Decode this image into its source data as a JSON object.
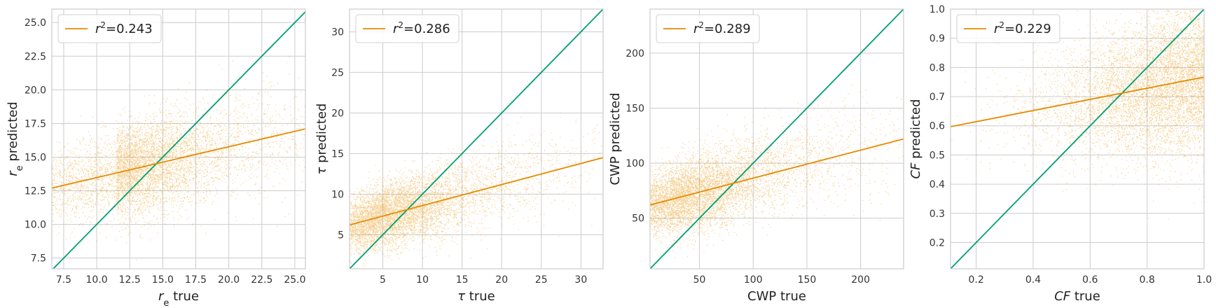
{
  "colors": {
    "scatter": "#e69914",
    "fit": "#e68a00",
    "identity": "#009e73",
    "grid": "#cccccc",
    "frame": "#cccccc"
  },
  "chart_data": [
    {
      "type": "scatter",
      "xlabel": "r_e true",
      "ylabel": "r_e predicted",
      "xlabel_parts": [
        {
          "t": "r",
          "s": "it"
        },
        {
          "t": "e",
          "s": "sub"
        },
        {
          "t": " true",
          "s": ""
        }
      ],
      "ylabel_parts": [
        {
          "t": "r",
          "s": "it"
        },
        {
          "t": "e",
          "s": "sub"
        },
        {
          "t": " predicted",
          "s": ""
        }
      ],
      "xlim": [
        6.6,
        25.8
      ],
      "ylim": [
        6.7,
        26.0
      ],
      "xticks": [
        7.5,
        10.0,
        12.5,
        15.0,
        17.5,
        20.0,
        22.5,
        25.0
      ],
      "xtick_labels": [
        "7.5",
        "10.0",
        "12.5",
        "15.0",
        "17.5",
        "20.0",
        "22.5",
        "25.0"
      ],
      "yticks": [
        7.5,
        10.0,
        12.5,
        15.0,
        17.5,
        20.0,
        22.5,
        25.0
      ],
      "ytick_labels": [
        "7.5",
        "10.0",
        "12.5",
        "15.0",
        "17.5",
        "20.0",
        "22.5",
        "25.0"
      ],
      "fit_line": [
        [
          6.6,
          12.7
        ],
        [
          25.8,
          17.1
        ]
      ],
      "identity_line": true,
      "legend": {
        "label": "r²=0.243",
        "placement": "upper left"
      },
      "r2": 0.243,
      "point_cloud": {
        "x_mode": 11.5,
        "y_at_mode": 13.0,
        "y_spread": 1.4
      }
    },
    {
      "type": "scatter",
      "xlabel": "τ true",
      "ylabel": "τ predicted",
      "xlabel_parts": [
        {
          "t": "τ",
          "s": "it"
        },
        {
          "t": " true",
          "s": ""
        }
      ],
      "ylabel_parts": [
        {
          "t": "τ",
          "s": "it"
        },
        {
          "t": " predicted",
          "s": ""
        }
      ],
      "xlim": [
        0.8,
        32.8
      ],
      "ylim": [
        0.8,
        32.8
      ],
      "xticks": [
        5,
        10,
        15,
        20,
        25,
        30
      ],
      "xtick_labels": [
        "5",
        "10",
        "15",
        "20",
        "25",
        "30"
      ],
      "yticks": [
        5,
        10,
        15,
        20,
        25,
        30
      ],
      "ytick_labels": [
        "5",
        "10",
        "15",
        "20",
        "25",
        "30"
      ],
      "fit_line": [
        [
          0.8,
          6.2
        ],
        [
          32.8,
          14.5
        ]
      ],
      "identity_line": true,
      "legend": {
        "label": "r²=0.286",
        "placement": "upper left"
      },
      "r2": 0.286,
      "point_cloud": {
        "x_mode": 3.5,
        "y_at_mode": 6.3,
        "y_spread": 1.8
      }
    },
    {
      "type": "scatter",
      "xlabel": "CWP true",
      "ylabel": "CWP predicted",
      "xlabel_parts": [
        {
          "t": "CWP true",
          "s": ""
        }
      ],
      "ylabel_parts": [
        {
          "t": "CWP predicted",
          "s": ""
        }
      ],
      "xlim": [
        4,
        240
      ],
      "ylim": [
        4,
        240
      ],
      "xticks": [
        50,
        100,
        150,
        200
      ],
      "xtick_labels": [
        "50",
        "100",
        "150",
        "200"
      ],
      "yticks": [
        50,
        100,
        150,
        200
      ],
      "ytick_labels": [
        "50",
        "100",
        "150",
        "200"
      ],
      "fit_line": [
        [
          4,
          62
        ],
        [
          240,
          122
        ]
      ],
      "identity_line": true,
      "legend": {
        "label": "r²=0.289",
        "placement": "upper left"
      },
      "r2": 0.289,
      "point_cloud": {
        "x_mode": 25,
        "y_at_mode": 62,
        "y_spread": 15
      }
    },
    {
      "type": "scatter",
      "xlabel": "CF true",
      "ylabel": "CF predicted",
      "xlabel_parts": [
        {
          "t": "CF",
          "s": "it"
        },
        {
          "t": " true",
          "s": ""
        }
      ],
      "ylabel_parts": [
        {
          "t": "CF",
          "s": "it"
        },
        {
          "t": " predicted",
          "s": ""
        }
      ],
      "xlim": [
        0.11,
        1.0
      ],
      "ylim": [
        0.11,
        1.0
      ],
      "xticks": [
        0.2,
        0.4,
        0.6,
        0.8,
        1.0
      ],
      "xtick_labels": [
        "0.2",
        "0.4",
        "0.6",
        "0.8",
        "1.0"
      ],
      "yticks": [
        0.2,
        0.3,
        0.4,
        0.5,
        0.6,
        0.7,
        0.8,
        0.9,
        1.0
      ],
      "ytick_labels": [
        "0.2",
        "0.3",
        "0.4",
        "0.5",
        "0.6",
        "0.7",
        "0.8",
        "0.9",
        "1.0"
      ],
      "fit_line": [
        [
          0.11,
          0.597
        ],
        [
          1.0,
          0.767
        ]
      ],
      "identity_line": true,
      "legend": {
        "label": "r²=0.229",
        "placement": "upper left"
      },
      "r2": 0.229,
      "point_cloud": {
        "x_mode": 0.9,
        "y_at_mode": 0.75,
        "y_spread": 0.08
      }
    }
  ]
}
